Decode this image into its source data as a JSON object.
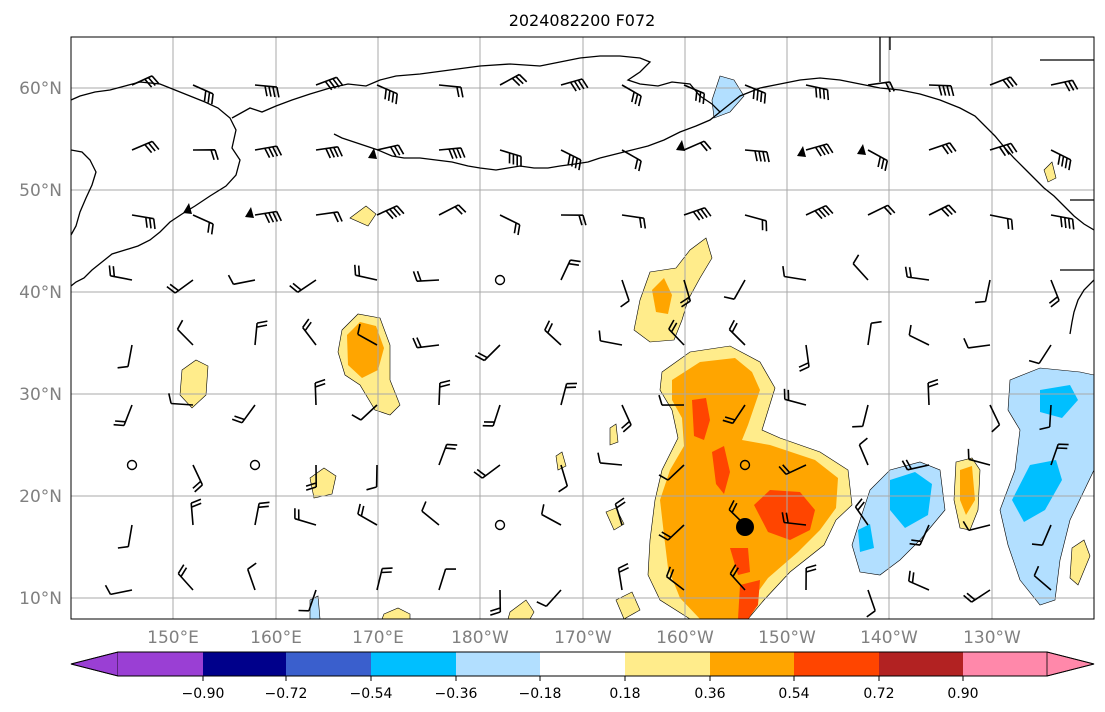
{
  "title": "2024082200 F072",
  "lat_labels": [
    "60°N",
    "50°N",
    "40°N",
    "30°N",
    "20°N",
    "10°N"
  ],
  "lon_labels": [
    "150°E",
    "160°E",
    "170°E",
    "180°W",
    "170°W",
    "160°W",
    "150°W",
    "140°W",
    "130°W"
  ],
  "colorbar": {
    "ticks": [
      "−0.90",
      "−0.72",
      "−0.54",
      "−0.36",
      "−0.18",
      "0.18",
      "0.36",
      "0.54",
      "0.72",
      "0.90"
    ],
    "colors": [
      "#9a3fd4",
      "#00008b",
      "#3a5fcd",
      "#00bfff",
      "#b2dfff",
      "#ffffff",
      "#ffec8b",
      "#ffa500",
      "#ff4500",
      "#b22222",
      "#ff88aa"
    ]
  },
  "palette": {
    "light_yellow": "#ffec8b",
    "orange": "#ffa500",
    "red_orange": "#ff4500",
    "light_blue": "#b2dfff",
    "blue": "#00bfff"
  },
  "marker": {
    "name": "storm-center-marker",
    "lon": -153.5,
    "lat": 17
  }
}
